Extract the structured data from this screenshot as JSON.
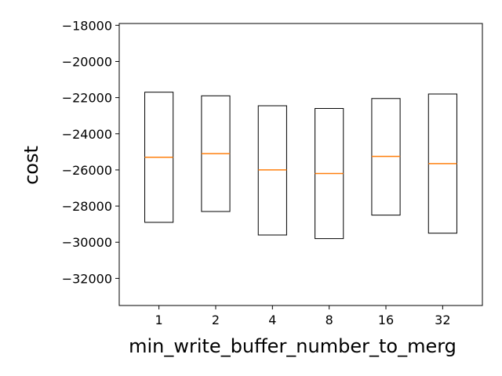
{
  "chart_data": {
    "type": "box",
    "title": "",
    "xlabel": "min_write_buffer_number_to_merg",
    "ylabel": "cost",
    "categories": [
      "1",
      "2",
      "4",
      "8",
      "16",
      "32"
    ],
    "boxes": [
      {
        "category": "1",
        "q1": -28900,
        "median": -25300,
        "q3": -21700
      },
      {
        "category": "2",
        "q1": -28300,
        "median": -25100,
        "q3": -21900
      },
      {
        "category": "4",
        "q1": -29600,
        "median": -26000,
        "q3": -22450
      },
      {
        "category": "8",
        "q1": -29800,
        "median": -26200,
        "q3": -22600
      },
      {
        "category": "16",
        "q1": -28500,
        "median": -25250,
        "q3": -22050
      },
      {
        "category": "32",
        "q1": -29500,
        "median": -25650,
        "q3": -21800
      }
    ],
    "ylim": [
      -33500,
      -17900
    ],
    "yticks": [
      -18000,
      -20000,
      -22000,
      -24000,
      -26000,
      -28000,
      -30000,
      -32000
    ],
    "grid": false,
    "colors": {
      "box": "#000000",
      "median": "#ff7f0e"
    }
  }
}
